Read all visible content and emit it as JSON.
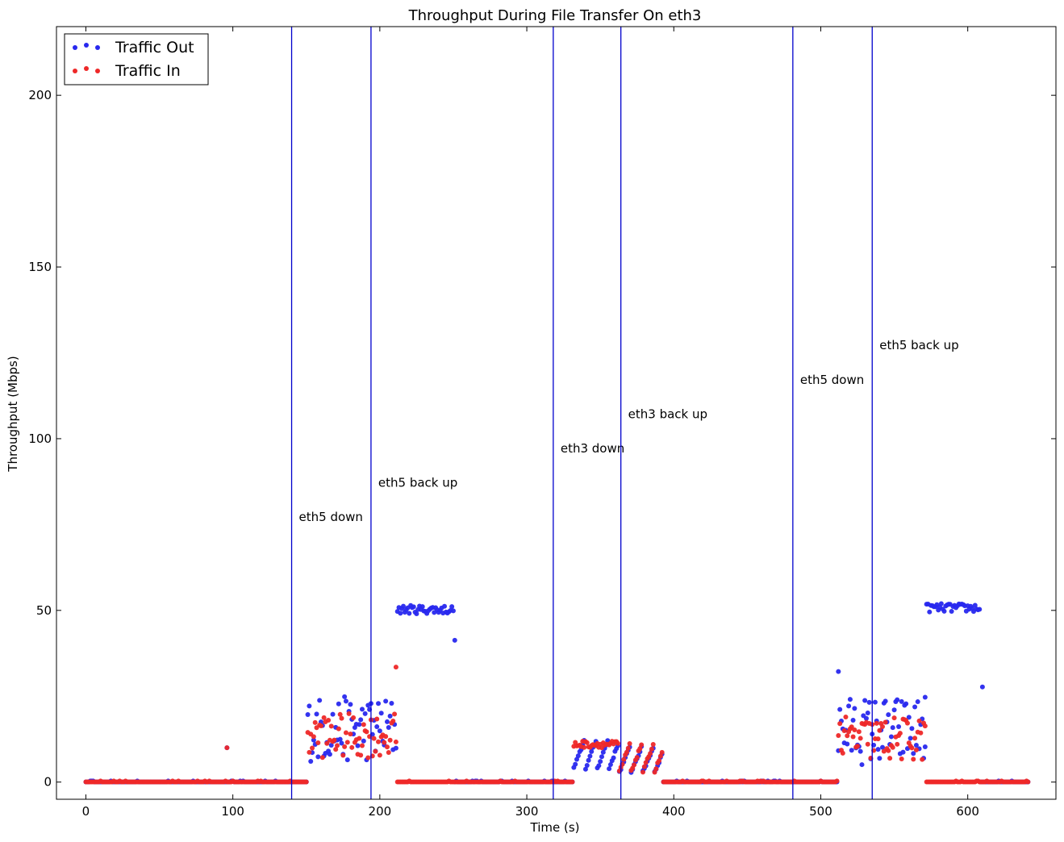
{
  "chart_data": {
    "type": "scatter",
    "title": "Throughput During File Transfer On eth3",
    "xlabel": "Time (s)",
    "ylabel": "Throughput (Mbps)",
    "xlim": [
      -20,
      660
    ],
    "ylim": [
      -5,
      220
    ],
    "xticks": [
      0,
      100,
      200,
      300,
      400,
      500,
      600
    ],
    "yticks": [
      0,
      50,
      100,
      150,
      200
    ],
    "legend_position": "top-left",
    "grid": false,
    "series": [
      {
        "name": "Traffic Out",
        "color": "#2828ee",
        "segments": [
          {
            "range": [
              0,
              150
            ],
            "kind": "zero"
          },
          {
            "range": [
              151,
              211
            ],
            "kind": "noisy",
            "min": 6,
            "max": 25
          },
          {
            "range": [
              212,
              250
            ],
            "kind": "noisy",
            "min": 49,
            "max": 51.5
          },
          {
            "range": [
              251,
              331
            ],
            "kind": "zero"
          },
          {
            "range": [
              332,
              362
            ],
            "kind": "ramp",
            "from": 4,
            "to": 12
          },
          {
            "range": [
              363,
              392
            ],
            "kind": "ramp",
            "from": 3,
            "to": 10
          },
          {
            "range": [
              393,
              511
            ],
            "kind": "zero"
          },
          {
            "range": [
              512,
              571
            ],
            "kind": "noisy",
            "min": 5,
            "max": 25
          },
          {
            "range": [
              572,
              608
            ],
            "kind": "noisy",
            "min": 49.5,
            "max": 52
          },
          {
            "range": [
              609,
              641
            ],
            "kind": "zero"
          }
        ],
        "outliers": [
          [
            96,
            10
          ],
          [
            251,
            41.3
          ],
          [
            512,
            32.2
          ],
          [
            571,
            24.7
          ],
          [
            610,
            27.7
          ]
        ]
      },
      {
        "name": "Traffic In",
        "color": "#ee2828",
        "segments": [
          {
            "range": [
              0,
              150
            ],
            "kind": "zero"
          },
          {
            "range": [
              151,
              211
            ],
            "kind": "noisy",
            "min": 7,
            "max": 20
          },
          {
            "range": [
              212,
              331
            ],
            "kind": "zero"
          },
          {
            "range": [
              332,
              362
            ],
            "kind": "noisy",
            "min": 10,
            "max": 12
          },
          {
            "range": [
              363,
              392
            ],
            "kind": "ramp",
            "from": 3,
            "to": 11
          },
          {
            "range": [
              393,
              511
            ],
            "kind": "zero"
          },
          {
            "range": [
              512,
              571
            ],
            "kind": "noisy",
            "min": 6,
            "max": 19
          },
          {
            "range": [
              572,
              641
            ],
            "kind": "zero"
          }
        ],
        "outliers": [
          [
            96,
            10
          ],
          [
            211,
            33.5
          ]
        ]
      }
    ],
    "events": [
      {
        "x": 140,
        "label": "eth5 down",
        "label_y": 76
      },
      {
        "x": 194,
        "label": "eth5 back up",
        "label_y": 86
      },
      {
        "x": 318,
        "label": "eth3 down",
        "label_y": 96
      },
      {
        "x": 364,
        "label": "eth3 back up",
        "label_y": 106
      },
      {
        "x": 481,
        "label": "eth5 down",
        "label_y": 116
      },
      {
        "x": 535,
        "label": "eth5 back up",
        "label_y": 126
      }
    ]
  }
}
